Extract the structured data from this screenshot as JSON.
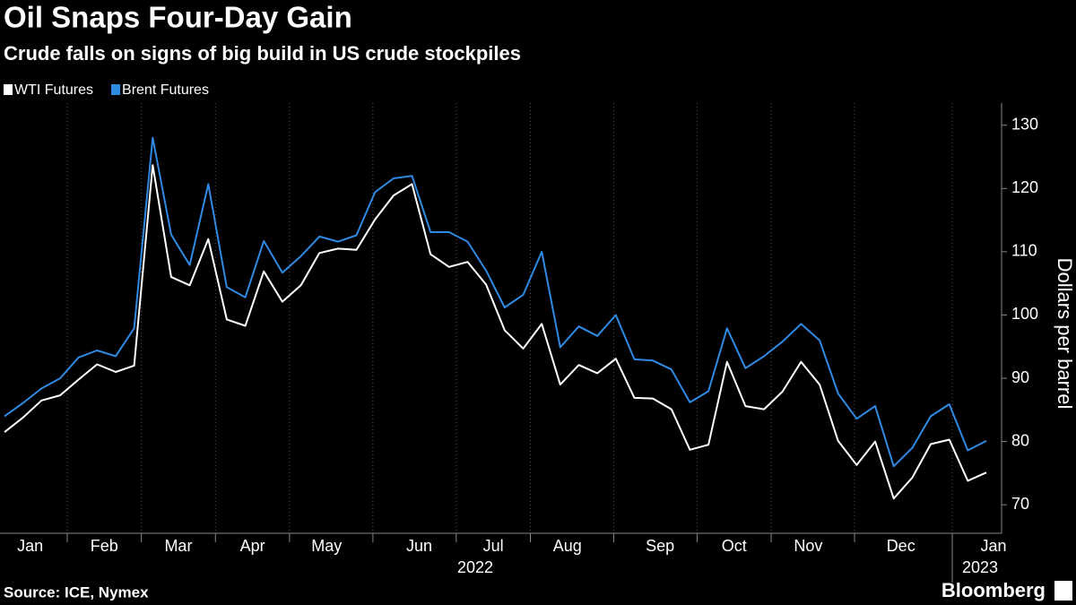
{
  "chart_data": {
    "type": "line",
    "title": "Oil Snaps Four-Day Gain",
    "subtitle": "Crude falls on signs of big build in US crude stockpiles",
    "y_label": "Dollars per barrel",
    "source": "Source: ICE, Nymex",
    "credit": "Bloomberg",
    "year_labels": [
      "2022",
      "2023"
    ],
    "categories": [
      null,
      "Jan",
      null,
      null,
      null,
      "Feb",
      null,
      null,
      null,
      "Mar",
      null,
      null,
      null,
      "Apr",
      null,
      null,
      null,
      "May",
      null,
      null,
      null,
      null,
      "Jun",
      null,
      null,
      null,
      "Jul",
      null,
      null,
      null,
      "Aug",
      null,
      null,
      null,
      null,
      "Sep",
      null,
      null,
      null,
      "Oct",
      null,
      null,
      null,
      "Nov",
      null,
      null,
      null,
      null,
      "Dec",
      null,
      null,
      null,
      null,
      "Jan"
    ],
    "series": [
      {
        "name": "WTI Futures",
        "color": "#ffffff",
        "values": [
          81.5,
          83.8,
          86.5,
          87.3,
          89.8,
          92.2,
          91.0,
          92.0,
          123.7,
          106.0,
          104.7,
          112.0,
          99.3,
          98.3,
          106.9,
          102.1,
          104.7,
          109.8,
          110.5,
          110.3,
          115.1,
          118.9,
          120.7,
          109.6,
          107.6,
          108.4,
          104.8,
          97.6,
          94.7,
          98.6,
          89.0,
          92.1,
          90.8,
          93.1,
          86.9,
          86.8,
          85.1,
          78.7,
          79.5,
          92.6,
          85.6,
          85.1,
          87.9,
          92.6,
          89.0,
          80.1,
          76.3,
          80.0,
          71.0,
          74.3,
          79.6,
          80.3,
          73.8,
          75.1
        ]
      },
      {
        "name": "Brent Futures",
        "color": "#2f8ae4",
        "values": [
          84.0,
          86.1,
          88.4,
          90.0,
          93.3,
          94.4,
          93.5,
          97.9,
          128.0,
          112.7,
          107.9,
          120.7,
          104.4,
          102.8,
          111.7,
          106.7,
          109.3,
          112.4,
          111.6,
          112.6,
          119.4,
          121.6,
          122.0,
          113.1,
          113.1,
          111.6,
          107.0,
          101.2,
          103.2,
          110.0,
          94.9,
          98.2,
          96.7,
          100.0,
          93.0,
          92.8,
          91.4,
          86.2,
          87.96,
          97.9,
          91.6,
          93.5,
          95.8,
          98.6,
          95.99,
          87.6,
          83.6,
          85.6,
          76.1,
          79.0,
          84.0,
          85.9,
          78.6,
          80.1
        ]
      }
    ],
    "ylim": [
      65.5,
      133.5
    ],
    "yticks": [
      70,
      80,
      90,
      100,
      110,
      120,
      130
    ],
    "grid": false
  }
}
